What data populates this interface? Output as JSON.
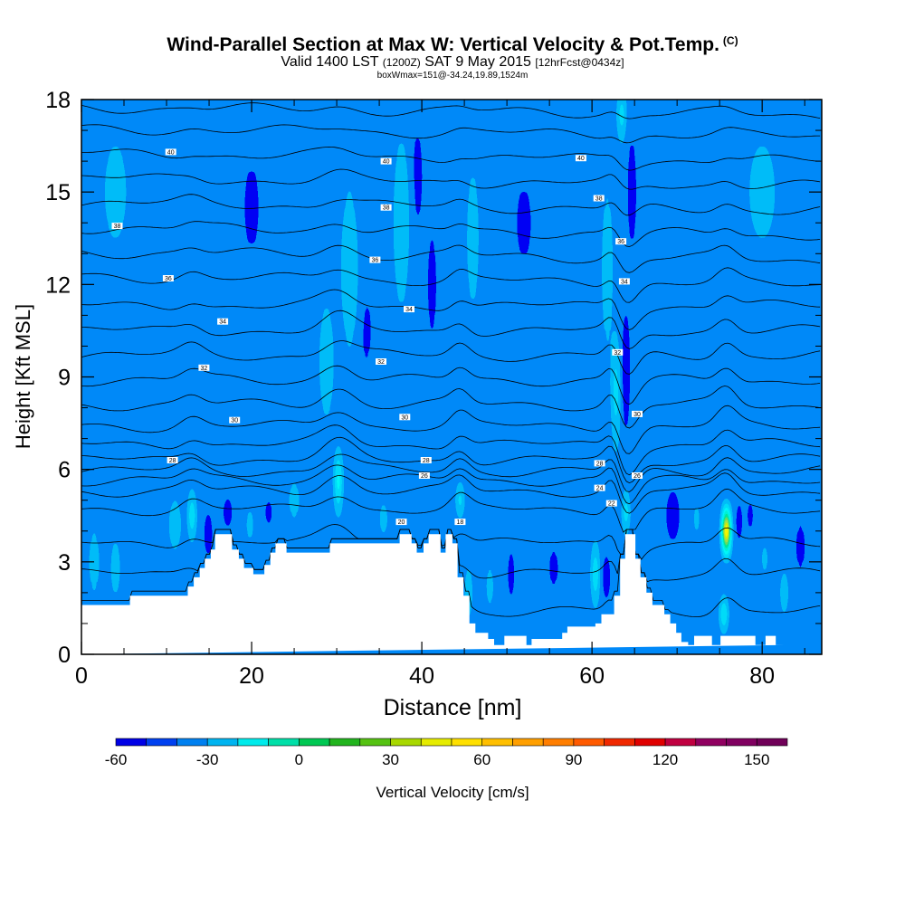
{
  "chart_data": {
    "type": "heatmap",
    "title": "Wind-Parallel Section at Max W: Vertical Velocity & Pot.Temp.",
    "title_suffix": "(C)",
    "subtitle_main_a": "Valid 1400 LST",
    "subtitle_zulu": "(1200Z)",
    "subtitle_main_b": "SAT 9 May 2015",
    "subtitle_fcst": "[12hrFcst@0434z]",
    "subtitle2": "boxWmax=151@-34.24,19.89,1524m",
    "xlabel": "Distance [nm]",
    "ylabel": "Height [Kft MSL]",
    "xlim": [
      0,
      87
    ],
    "ylim": [
      0,
      18
    ],
    "xticks": [
      "0",
      "20",
      "40",
      "60",
      "80"
    ],
    "xtick_values": [
      0,
      20,
      40,
      60,
      80
    ],
    "yticks": [
      "0",
      "3",
      "6",
      "9",
      "12",
      "15",
      "18"
    ],
    "ytick_values": [
      0,
      3,
      6,
      9,
      12,
      15,
      18
    ],
    "colorbar": {
      "label": "Vertical Velocity [cm/s]",
      "min": -60,
      "max": 160,
      "step": 10,
      "tick_labels": [
        "-60",
        "-30",
        "0",
        "30",
        "60",
        "90",
        "120",
        "150"
      ],
      "tick_values": [
        -60,
        -30,
        0,
        30,
        60,
        90,
        120,
        150
      ],
      "colors": [
        "#0000e6",
        "#0040f0",
        "#0080f0",
        "#00b4f0",
        "#00ebeb",
        "#00dfa8",
        "#00c853",
        "#22b41e",
        "#55c212",
        "#a8d800",
        "#e6ec00",
        "#ffe000",
        "#ffbf00",
        "#ff9f00",
        "#ff7e00",
        "#ff5a00",
        "#f02800",
        "#e00000",
        "#c00040",
        "#900060",
        "#800060",
        "#700058"
      ]
    },
    "terrain_profile": {
      "x": [
        0,
        5.7,
        5.7,
        12.5,
        12.5,
        13.2,
        13.2,
        13.9,
        13.9,
        14.5,
        14.5,
        15.2,
        15.2,
        15.7,
        15.7,
        16.3,
        16.3,
        17.7,
        17.7,
        18.5,
        18.5,
        19.1,
        19.1,
        20.2,
        20.2,
        21.5,
        21.5,
        22.2,
        22.2,
        22.8,
        22.8,
        24.1,
        24.1,
        24.8,
        24.8,
        29.2,
        29.2,
        37.4,
        37.4,
        38.8,
        38.8,
        39.4,
        39.4,
        40.2,
        40.2,
        40.8,
        40.8,
        42.2,
        42.2,
        42.8,
        42.8,
        43.6,
        43.6,
        44.2,
        44.2,
        44.9,
        44.9,
        45.6,
        45.6,
        46.3,
        46.3,
        47.8,
        47.8,
        48.5,
        48.5,
        49.7,
        49.7,
        52.3,
        52.3,
        52.9,
        52.9,
        56.5,
        56.5,
        57.1,
        57.1,
        60.4,
        60.4,
        61.1,
        61.1,
        62.6,
        62.6,
        63.3,
        63.3,
        63.9,
        63.9,
        65.1,
        65.1,
        65.7,
        65.7,
        66.4,
        66.4,
        67.1,
        67.1,
        68.5,
        68.5,
        69.2,
        69.2,
        69.9,
        69.9,
        70.5,
        70.5,
        71.3,
        71.3,
        72.0,
        72.0,
        72.7,
        72.7,
        73.4,
        73.4,
        74.1,
        74.1,
        75.1,
        75.1,
        77.3,
        77.3,
        79.2,
        79.2,
        80.4,
        80.4,
        81.6,
        81.6,
        82.6,
        82.6,
        87
      ],
      "z": [
        1.6,
        1.6,
        1.9,
        1.9,
        2.2,
        2.2,
        2.5,
        2.5,
        2.8,
        2.8,
        3.1,
        3.1,
        3.4,
        3.4,
        3.9,
        3.9,
        3.9,
        3.9,
        3.4,
        3.4,
        3.1,
        3.1,
        2.8,
        2.8,
        2.6,
        2.6,
        2.9,
        2.9,
        3.3,
        3.3,
        3.6,
        3.6,
        3.3,
        3.3,
        3.3,
        3.3,
        3.6,
        3.6,
        3.9,
        3.9,
        3.6,
        3.6,
        3.3,
        3.3,
        3.6,
        3.6,
        3.9,
        3.9,
        3.3,
        3.3,
        3.9,
        3.9,
        3.6,
        3.6,
        2.5,
        2.5,
        1.9,
        1.9,
        1.0,
        1.0,
        0.7,
        0.7,
        0.5,
        0.5,
        0.3,
        0.3,
        0.6,
        0.6,
        0.3,
        0.3,
        0.5,
        0.5,
        0.7,
        0.7,
        0.9,
        0.9,
        1.0,
        1.0,
        1.3,
        1.3,
        1.9,
        1.9,
        3.1,
        3.1,
        3.9,
        3.9,
        3.1,
        3.1,
        2.5,
        2.5,
        2.0,
        2.0,
        1.6,
        1.6,
        1.3,
        1.3,
        1.0,
        1.0,
        0.7,
        0.7,
        0.4,
        0.4,
        0.3,
        0.3,
        0.6,
        0.6,
        0.6,
        0.6,
        0.6,
        0.6,
        0.3,
        0.3,
        0.6,
        0.6,
        0.6,
        0.6,
        0.3,
        0.3,
        0.6,
        0.6,
        0.3,
        0.3,
        0.3
      ]
    },
    "isentrope_levels_kft": [
      1.4,
      2.6,
      3.6,
      4.7,
      5.3,
      5.65,
      5.95,
      6.3,
      6.8,
      7.4,
      8.1,
      8.9,
      9.7,
      10.5,
      11.3,
      12.1,
      12.9,
      13.7,
      14.5,
      15.3,
      16.1,
      16.9,
      17.6
    ],
    "isentrope_labels": [
      {
        "text": "40",
        "x": 10.5,
        "y": 16.3
      },
      {
        "text": "40",
        "x": 35.8,
        "y": 16.0
      },
      {
        "text": "40",
        "x": 58.7,
        "y": 16.1
      },
      {
        "text": "38",
        "x": 4.2,
        "y": 13.9
      },
      {
        "text": "38",
        "x": 35.8,
        "y": 14.5
      },
      {
        "text": "38",
        "x": 60.8,
        "y": 14.8
      },
      {
        "text": "36",
        "x": 34.5,
        "y": 12.8
      },
      {
        "text": "36",
        "x": 10.2,
        "y": 12.2
      },
      {
        "text": "36",
        "x": 63.4,
        "y": 13.4
      },
      {
        "text": "34",
        "x": 38.5,
        "y": 11.2
      },
      {
        "text": "34",
        "x": 16.6,
        "y": 10.8
      },
      {
        "text": "34",
        "x": 63.8,
        "y": 12.1
      },
      {
        "text": "32",
        "x": 14.4,
        "y": 9.3
      },
      {
        "text": "32",
        "x": 35.2,
        "y": 9.5
      },
      {
        "text": "32",
        "x": 63.0,
        "y": 9.8
      },
      {
        "text": "30",
        "x": 18.0,
        "y": 7.6
      },
      {
        "text": "30",
        "x": 38.0,
        "y": 7.7
      },
      {
        "text": "30",
        "x": 65.3,
        "y": 7.8
      },
      {
        "text": "28",
        "x": 10.7,
        "y": 6.3
      },
      {
        "text": "28",
        "x": 40.5,
        "y": 6.3
      },
      {
        "text": "28",
        "x": 60.9,
        "y": 6.2
      },
      {
        "text": "26",
        "x": 40.3,
        "y": 5.8
      },
      {
        "text": "26",
        "x": 65.3,
        "y": 5.8
      },
      {
        "text": "24",
        "x": 60.9,
        "y": 5.4
      },
      {
        "text": "22",
        "x": 62.3,
        "y": 4.9
      },
      {
        "text": "20",
        "x": 37.6,
        "y": 4.3
      },
      {
        "text": "18",
        "x": 44.5,
        "y": 4.3
      }
    ],
    "velocity_features": [
      {
        "x": 1.5,
        "z": 3.0,
        "w": 20,
        "sx": 1.2,
        "sz": 2.0
      },
      {
        "x": 4.0,
        "z": 2.8,
        "w": 25,
        "sx": 0.8,
        "sz": 1.5
      },
      {
        "x": 11.0,
        "z": 4.2,
        "w": 28,
        "sx": 1.0,
        "sz": 1.2
      },
      {
        "x": 13.0,
        "z": 4.5,
        "w": 55,
        "sx": 0.5,
        "sz": 1.1
      },
      {
        "x": 14.9,
        "z": 3.9,
        "w": -50,
        "sx": 0.5,
        "sz": 0.9
      },
      {
        "x": 17.2,
        "z": 4.6,
        "w": -25,
        "sx": 0.8,
        "sz": 0.8
      },
      {
        "x": 19.8,
        "z": 4.2,
        "w": 20,
        "sx": 0.8,
        "sz": 1.2
      },
      {
        "x": 22.0,
        "z": 4.6,
        "w": -20,
        "sx": 0.7,
        "sz": 0.8
      },
      {
        "x": 25.0,
        "z": 5.0,
        "w": 20,
        "sx": 1.2,
        "sz": 1.2
      },
      {
        "x": 30.2,
        "z": 5.6,
        "w": 65,
        "sx": 0.5,
        "sz": 1.4
      },
      {
        "x": 28.8,
        "z": 9.5,
        "w": 28,
        "sx": 1.2,
        "sz": 2.6
      },
      {
        "x": 31.5,
        "z": 12.5,
        "w": 24,
        "sx": 1.6,
        "sz": 4.0
      },
      {
        "x": 33.5,
        "z": 10.5,
        "w": -18,
        "sx": 1.0,
        "sz": 2.0
      },
      {
        "x": 35.5,
        "z": 4.4,
        "w": 24,
        "sx": 0.7,
        "sz": 0.9
      },
      {
        "x": 37.6,
        "z": 14.0,
        "w": 26,
        "sx": 1.4,
        "sz": 4.0
      },
      {
        "x": 39.5,
        "z": 15.5,
        "w": -22,
        "sx": 0.9,
        "sz": 2.5
      },
      {
        "x": 41.2,
        "z": 12.0,
        "w": -20,
        "sx": 0.9,
        "sz": 3.0
      },
      {
        "x": 44.5,
        "z": 5.0,
        "w": 45,
        "sx": 0.5,
        "sz": 0.8
      },
      {
        "x": 45.5,
        "z": 2.0,
        "w": 40,
        "sx": 0.4,
        "sz": 1.2
      },
      {
        "x": 48.0,
        "z": 2.2,
        "w": 22,
        "sx": 0.7,
        "sz": 1.3
      },
      {
        "x": 50.5,
        "z": 2.6,
        "w": -25,
        "sx": 0.6,
        "sz": 1.4
      },
      {
        "x": 55.5,
        "z": 2.8,
        "w": -18,
        "sx": 1.0,
        "sz": 1.2
      },
      {
        "x": 60.4,
        "z": 2.6,
        "w": 55,
        "sx": 0.5,
        "sz": 1.4
      },
      {
        "x": 61.7,
        "z": 2.5,
        "w": -45,
        "sx": 0.5,
        "sz": 1.0
      },
      {
        "x": 61.8,
        "z": 12.5,
        "w": 25,
        "sx": 1.0,
        "sz": 4.0
      },
      {
        "x": 62.8,
        "z": 8.5,
        "w": 45,
        "sx": 0.6,
        "sz": 2.5
      },
      {
        "x": 64.0,
        "z": 9.2,
        "w": -55,
        "sx": 0.5,
        "sz": 2.6
      },
      {
        "x": 64.0,
        "z": 4.6,
        "w": 55,
        "sx": 0.4,
        "sz": 1.0
      },
      {
        "x": 64.7,
        "z": 15.0,
        "w": -25,
        "sx": 0.8,
        "sz": 3.0
      },
      {
        "x": 63.5,
        "z": 17.5,
        "w": 45,
        "sx": 0.6,
        "sz": 1.2
      },
      {
        "x": 66.0,
        "z": 5.5,
        "w": 15,
        "sx": 1.0,
        "sz": 1.0
      },
      {
        "x": 69.5,
        "z": 4.5,
        "w": -20,
        "sx": 1.4,
        "sz": 1.5
      },
      {
        "x": 72.3,
        "z": 4.4,
        "w": 22,
        "sx": 0.6,
        "sz": 1.0
      },
      {
        "x": 75.8,
        "z": 4.0,
        "w": 140,
        "sx": 0.55,
        "sz": 1.1
      },
      {
        "x": 75.5,
        "z": 1.3,
        "w": 60,
        "sx": 0.5,
        "sz": 0.8
      },
      {
        "x": 77.3,
        "z": 4.3,
        "w": -40,
        "sx": 0.4,
        "sz": 1.0
      },
      {
        "x": 78.6,
        "z": 4.5,
        "w": -20,
        "sx": 0.6,
        "sz": 1.0
      },
      {
        "x": 80.3,
        "z": 3.1,
        "w": 22,
        "sx": 0.6,
        "sz": 1.0
      },
      {
        "x": 82.6,
        "z": 2.0,
        "w": 35,
        "sx": 0.5,
        "sz": 1.0
      },
      {
        "x": 84.5,
        "z": 3.5,
        "w": -18,
        "sx": 1.0,
        "sz": 1.5
      },
      {
        "x": 4.0,
        "z": 15.0,
        "w": 20,
        "sx": 2.5,
        "sz": 3.0
      },
      {
        "x": 20.0,
        "z": 14.5,
        "w": -15,
        "sx": 2.0,
        "sz": 3.5
      },
      {
        "x": 52.0,
        "z": 14.0,
        "w": -15,
        "sx": 2.0,
        "sz": 3.0
      },
      {
        "x": 46.0,
        "z": 13.5,
        "w": 22,
        "sx": 1.2,
        "sz": 4.0
      },
      {
        "x": 80.0,
        "z": 15.0,
        "w": 20,
        "sx": 3.0,
        "sz": 3.0
      }
    ]
  }
}
